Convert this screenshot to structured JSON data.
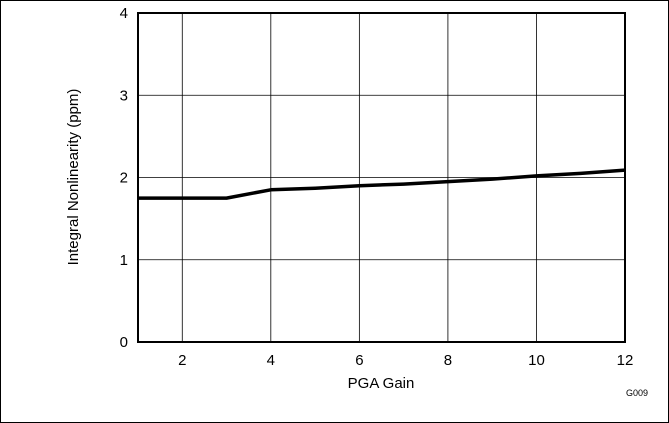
{
  "chart_data": {
    "type": "line",
    "title": "",
    "xlabel": "PGA Gain",
    "ylabel": "Integral Nonlinearity (ppm)",
    "xlim": [
      1,
      12
    ],
    "ylim": [
      0,
      4
    ],
    "x_ticks": [
      2,
      4,
      6,
      8,
      10,
      12
    ],
    "y_ticks": [
      0,
      1,
      2,
      3,
      4
    ],
    "grid": true,
    "series": [
      {
        "x": [
          1,
          2,
          3,
          4,
          5,
          6,
          7,
          8,
          9,
          10,
          11,
          12
        ],
        "values": [
          1.75,
          1.75,
          1.75,
          1.85,
          1.87,
          1.9,
          1.92,
          1.95,
          1.98,
          2.02,
          2.05,
          2.09
        ]
      }
    ],
    "colors": {
      "line": "#000000",
      "grid": "#000000"
    }
  },
  "figure_id": "G009"
}
